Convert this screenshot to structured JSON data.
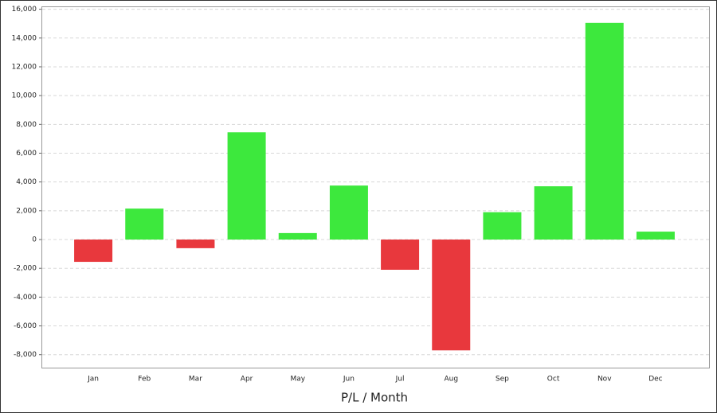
{
  "chart_data": {
    "type": "bar",
    "x_label": "P/L / Month",
    "categories": [
      "Jan",
      "Feb",
      "Mar",
      "Apr",
      "May",
      "Jun",
      "Jul",
      "Aug",
      "Sep",
      "Oct",
      "Nov",
      "Dec"
    ],
    "values": [
      -1550,
      2150,
      -600,
      7450,
      450,
      3750,
      -2100,
      -7700,
      1900,
      3700,
      15050,
      550
    ],
    "positive_color": "#3de83d",
    "negative_color": "#e8383d",
    "ylim": [
      -8900,
      16200
    ],
    "yticks": [
      {
        "value": -8000,
        "label": "-8,000"
      },
      {
        "value": -6000,
        "label": "-6,000"
      },
      {
        "value": -4000,
        "label": "-4,000"
      },
      {
        "value": -2000,
        "label": "-2,000"
      },
      0,
      {
        "value": 2000,
        "label": "2,000"
      },
      {
        "value": 4000,
        "label": "4,000"
      },
      {
        "value": 6000,
        "label": "6,000"
      },
      {
        "value": 8000,
        "label": "8,000"
      },
      {
        "value": 10000,
        "label": "10,000"
      },
      {
        "value": 12000,
        "label": "12,000"
      },
      {
        "value": 14000,
        "label": "14,000"
      },
      {
        "value": 16000,
        "label": "16,000"
      }
    ],
    "grid": true
  }
}
